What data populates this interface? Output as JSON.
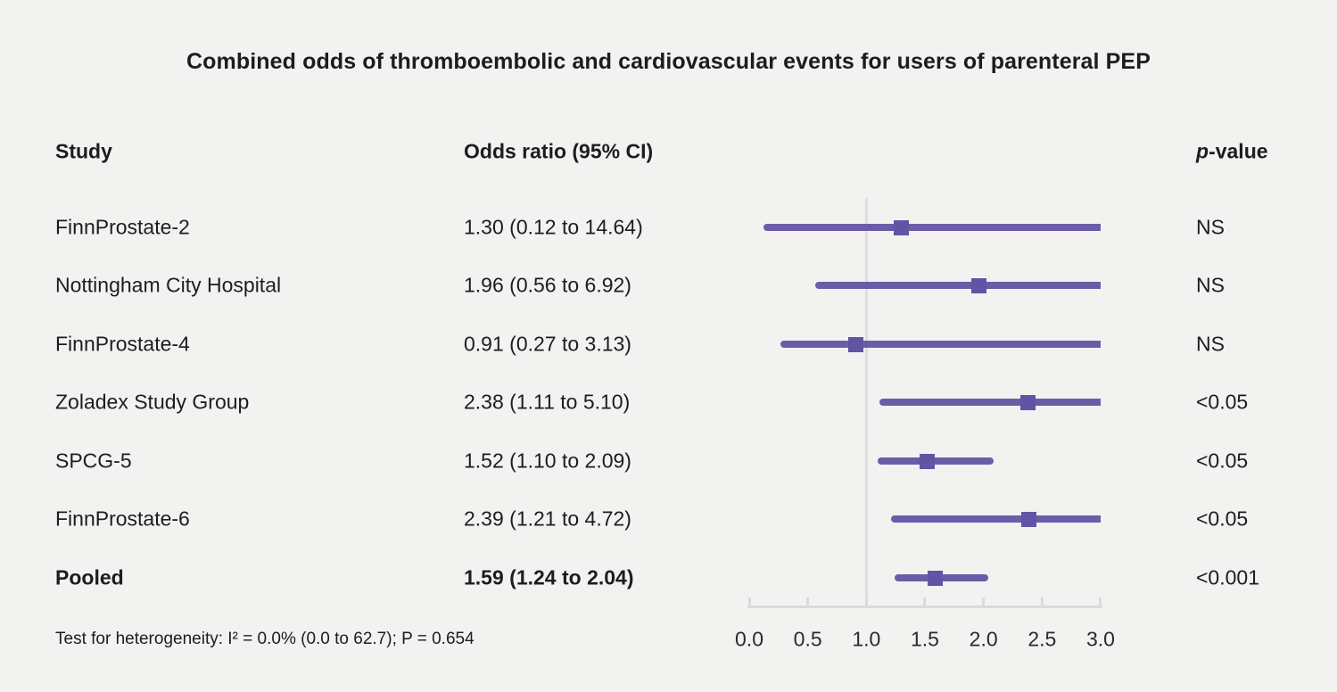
{
  "chart_data": {
    "type": "forest",
    "title": "Combined odds of thromboembolic and cardiovascular events for users of parenteral PEP",
    "columns": {
      "study": "Study",
      "odds_ratio": "Odds ratio (95% CI)",
      "p_value": "p-value"
    },
    "studies": [
      {
        "name": "FinnProstate-2",
        "or": 1.3,
        "ci_low": 0.12,
        "ci_high": 14.64,
        "label": "1.30 (0.12 to 14.64)",
        "p": "NS",
        "pooled": false
      },
      {
        "name": "Nottingham City Hospital",
        "or": 1.96,
        "ci_low": 0.56,
        "ci_high": 6.92,
        "label": "1.96 (0.56 to 6.92)",
        "p": "NS",
        "pooled": false
      },
      {
        "name": "FinnProstate-4",
        "or": 0.91,
        "ci_low": 0.27,
        "ci_high": 3.13,
        "label": "0.91 (0.27 to 3.13)",
        "p": "NS",
        "pooled": false
      },
      {
        "name": "Zoladex Study Group",
        "or": 2.38,
        "ci_low": 1.11,
        "ci_high": 5.1,
        "label": "2.38 (1.11 to 5.10)",
        "p": "<0.05",
        "pooled": false
      },
      {
        "name": "SPCG-5",
        "or": 1.52,
        "ci_low": 1.1,
        "ci_high": 2.09,
        "label": "1.52 (1.10 to 2.09)",
        "p": "<0.05",
        "pooled": false
      },
      {
        "name": "FinnProstate-6",
        "or": 2.39,
        "ci_low": 1.21,
        "ci_high": 4.72,
        "label": "2.39 (1.21 to 4.72)",
        "p": "<0.05",
        "pooled": false
      },
      {
        "name": "Pooled",
        "or": 1.59,
        "ci_low": 1.24,
        "ci_high": 2.04,
        "label": "1.59 (1.24 to 2.04)",
        "p": "<0.001",
        "pooled": true
      }
    ],
    "x_axis": {
      "tick_labels": [
        "0.0",
        "0.5",
        "1.0",
        "1.5",
        "2.0",
        "2.5",
        "3.0"
      ],
      "tick_values": [
        0.0,
        0.5,
        1.0,
        1.5,
        2.0,
        2.5,
        3.0
      ],
      "range": [
        0.0,
        3.0
      ],
      "reference_line": 1.0,
      "grid": false
    },
    "footnote": "Test for heterogeneity: I² = 0.0% (0.0 to 62.7); P = 0.654",
    "colors": {
      "ci_line": "#6c5ca8",
      "marker": "#6253a4",
      "reference_line": "#dcdfe2",
      "axis": "#d8dbde",
      "background": "#f2f2f1",
      "text": "#1d1d1d"
    },
    "legend": null
  }
}
